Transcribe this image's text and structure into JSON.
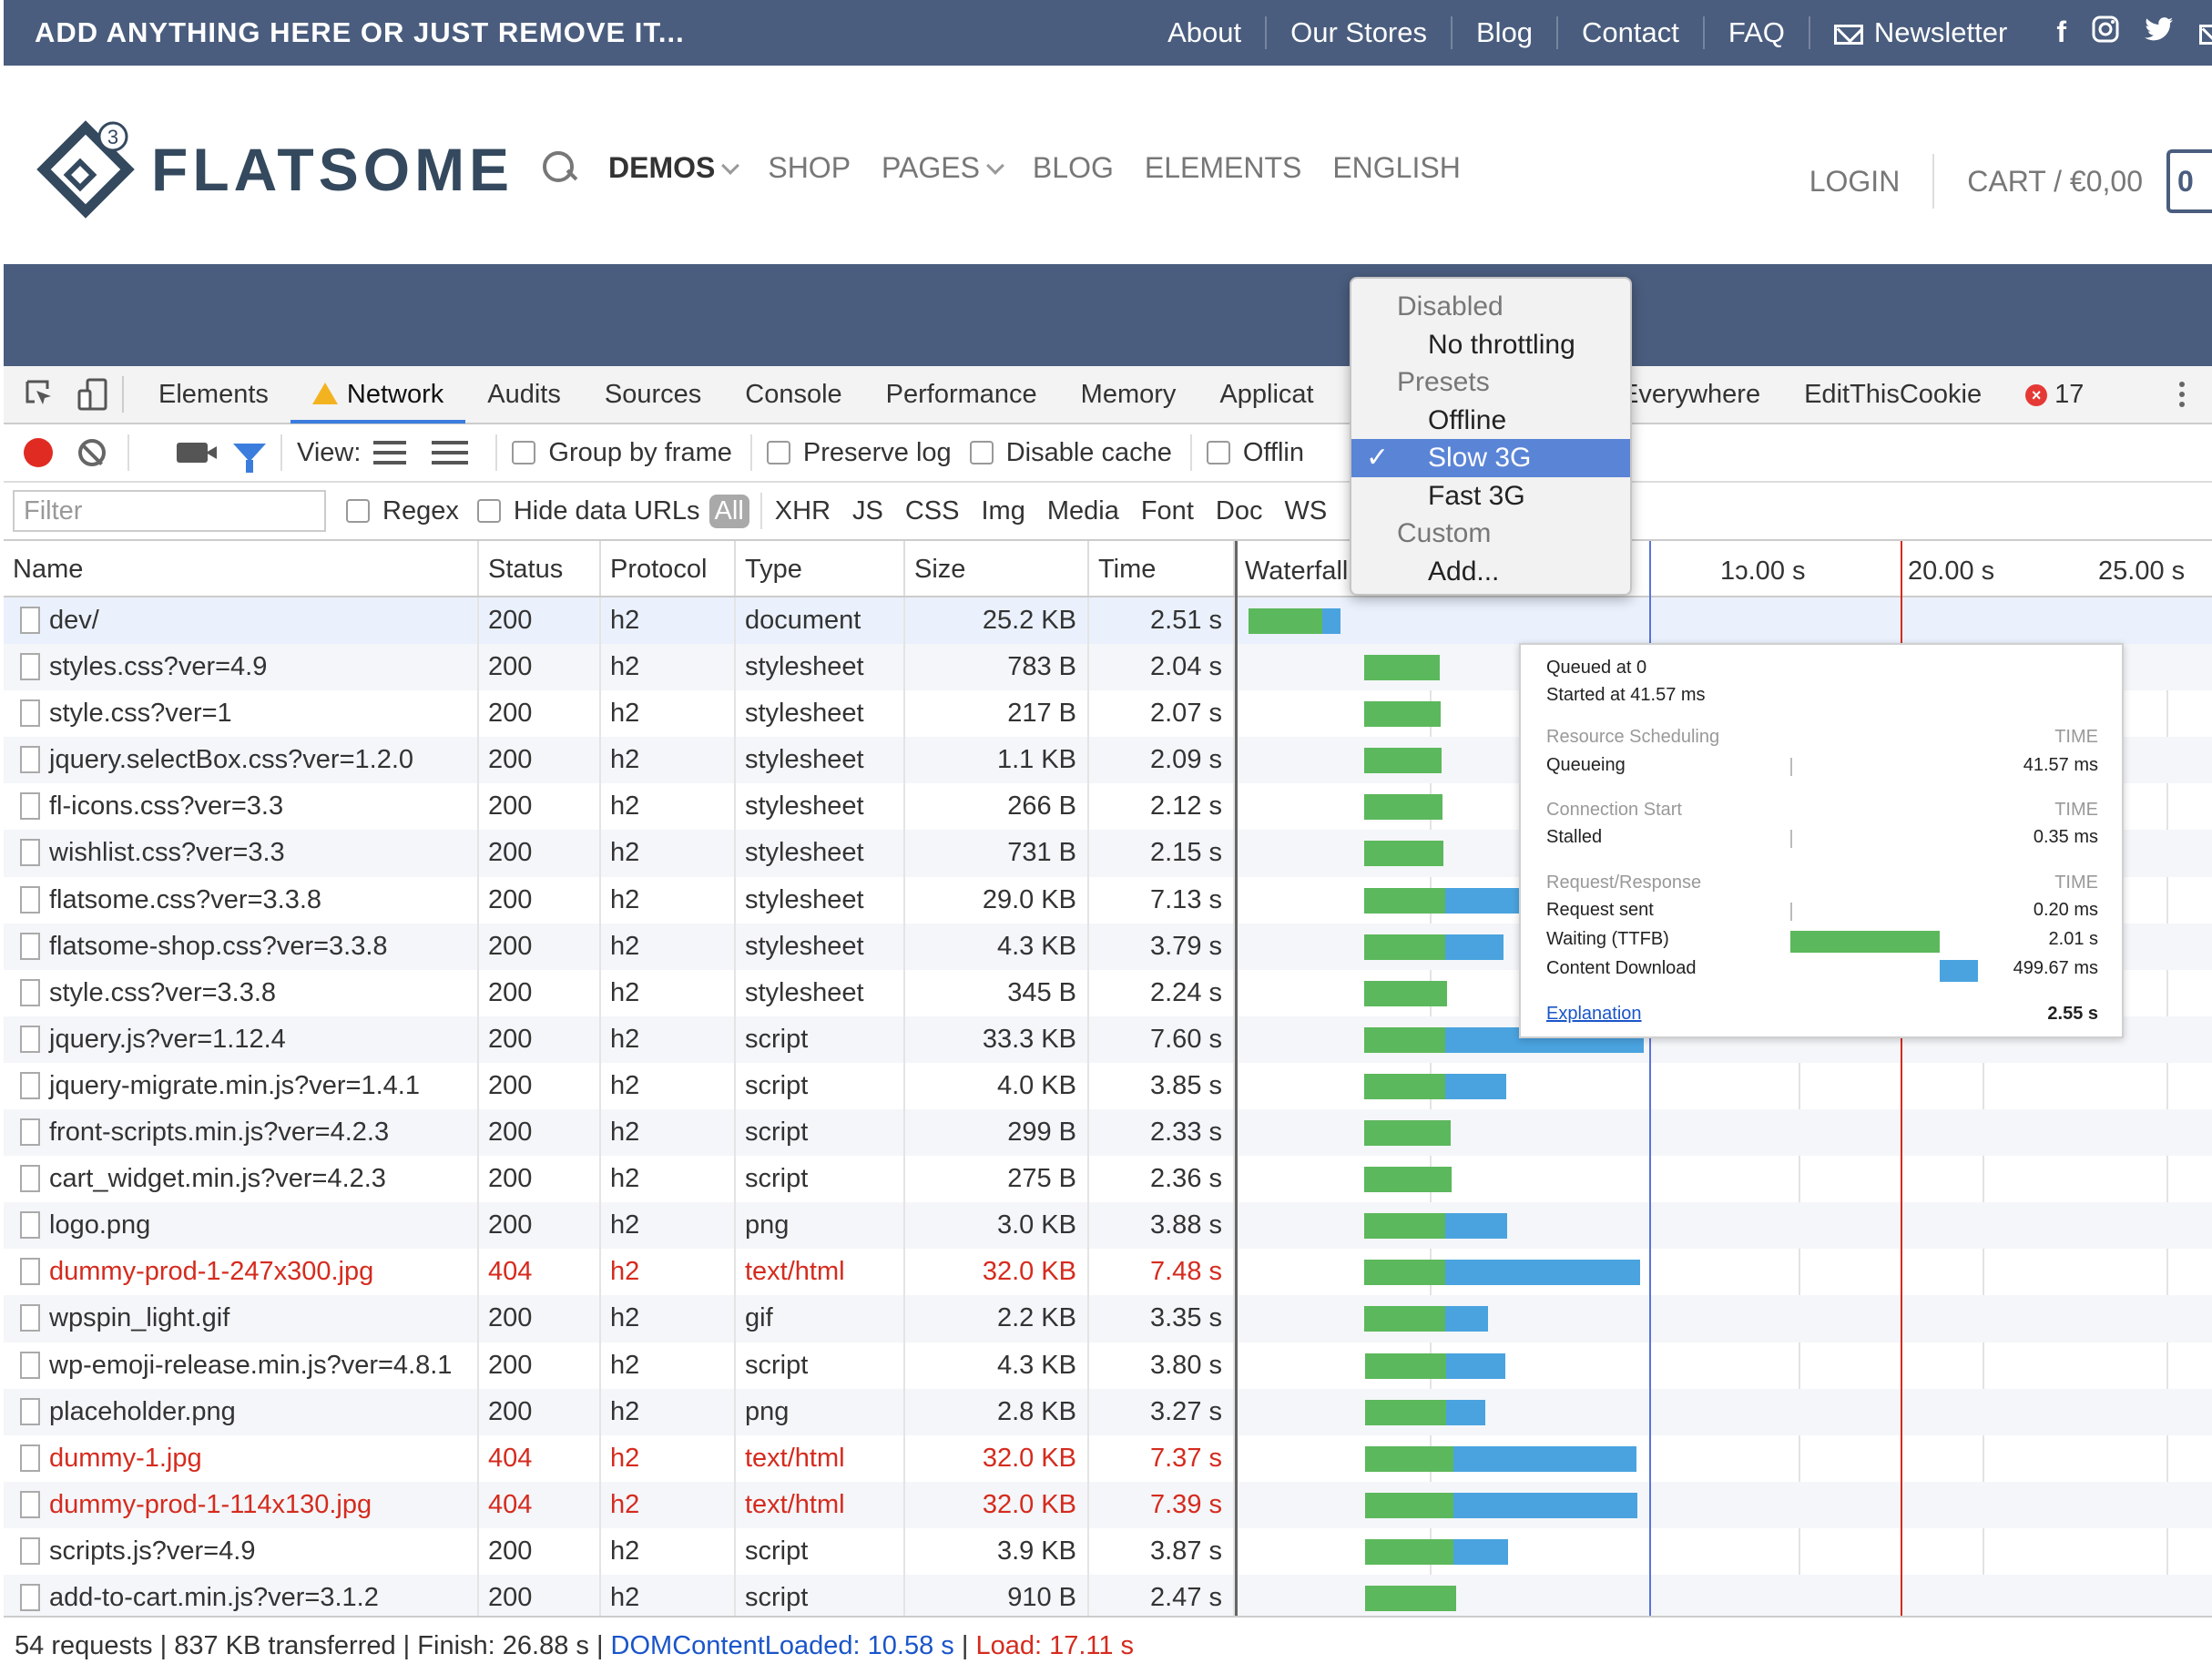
{
  "topbar": {
    "promo": "ADD ANYTHING HERE OR JUST REMOVE IT...",
    "links": [
      "About",
      "Our Stores",
      "Blog",
      "Contact",
      "FAQ",
      "Newsletter"
    ],
    "social_icons": [
      "facebook-icon",
      "instagram-icon",
      "twitter-icon",
      "mail-icon"
    ]
  },
  "header": {
    "logo_text": "FLATSOME",
    "logo_badge": "3",
    "nav": [
      "DEMOS",
      "SHOP",
      "PAGES",
      "BLOG",
      "ELEMENTS",
      "ENGLISH"
    ],
    "login": "LOGIN",
    "cart": "CART / €0,00",
    "cart_count": "0"
  },
  "devtools": {
    "tabs": [
      "Elements",
      "Network",
      "Audits",
      "Sources",
      "Console",
      "Performance",
      "Memory",
      "Applicat",
      "S Everywhere",
      "EditThisCookie"
    ],
    "selected_tab": "Network",
    "error_count": "17",
    "toolbar": {
      "view_label": "View:",
      "group_by_frame": "Group by frame",
      "preserve_log": "Preserve log",
      "disable_cache": "Disable cache",
      "offline": "Offlin"
    },
    "filter": {
      "placeholder": "Filter",
      "regex": "Regex",
      "hide_data_urls": "Hide data URLs",
      "types": [
        "All",
        "XHR",
        "JS",
        "CSS",
        "Img",
        "Media",
        "Font",
        "Doc",
        "WS"
      ]
    },
    "columns": [
      "Name",
      "Status",
      "Protocol",
      "Type",
      "Size",
      "Time",
      "Waterfall"
    ],
    "waterfall_ticks": [
      "1ͻ.00 s",
      "20.00 s",
      "25.00 s"
    ],
    "requests": [
      {
        "name": "dev/",
        "status": "200",
        "protocol": "h2",
        "type": "document",
        "size": "25.2 KB",
        "time": "2.51 s",
        "start": 0.0,
        "wait": 2.01,
        "download": 0.5
      },
      {
        "name": "styles.css?ver=4.9",
        "status": "200",
        "protocol": "h2",
        "type": "stylesheet",
        "size": "783 B",
        "time": "2.04 s",
        "start": 2.51,
        "wait": 2.04,
        "download": 0.0
      },
      {
        "name": "style.css?ver=1",
        "status": "200",
        "protocol": "h2",
        "type": "stylesheet",
        "size": "217 B",
        "time": "2.07 s",
        "start": 2.51,
        "wait": 2.07,
        "download": 0.0
      },
      {
        "name": "jquery.selectBox.css?ver=1.2.0",
        "status": "200",
        "protocol": "h2",
        "type": "stylesheet",
        "size": "1.1 KB",
        "time": "2.09 s",
        "start": 2.51,
        "wait": 2.09,
        "download": 0.0
      },
      {
        "name": "fl-icons.css?ver=3.3",
        "status": "200",
        "protocol": "h2",
        "type": "stylesheet",
        "size": "266 B",
        "time": "2.12 s",
        "start": 2.51,
        "wait": 2.12,
        "download": 0.0
      },
      {
        "name": "wishlist.css?ver=3.3",
        "status": "200",
        "protocol": "h2",
        "type": "stylesheet",
        "size": "731 B",
        "time": "2.15 s",
        "start": 2.51,
        "wait": 2.15,
        "download": 0.0
      },
      {
        "name": "flatsome.css?ver=3.3.8",
        "status": "200",
        "protocol": "h2",
        "type": "stylesheet",
        "size": "29.0 KB",
        "time": "7.13 s",
        "start": 2.51,
        "wait": 2.2,
        "download": 4.93
      },
      {
        "name": "flatsome-shop.css?ver=3.3.8",
        "status": "200",
        "protocol": "h2",
        "type": "stylesheet",
        "size": "4.3 KB",
        "time": "3.79 s",
        "start": 2.51,
        "wait": 2.2,
        "download": 1.59
      },
      {
        "name": "style.css?ver=3.3.8",
        "status": "200",
        "protocol": "h2",
        "type": "stylesheet",
        "size": "345 B",
        "time": "2.24 s",
        "start": 2.51,
        "wait": 2.24,
        "download": 0.0
      },
      {
        "name": "jquery.js?ver=1.12.4",
        "status": "200",
        "protocol": "h2",
        "type": "script",
        "size": "33.3 KB",
        "time": "7.60 s",
        "start": 2.51,
        "wait": 2.2,
        "download": 5.4
      },
      {
        "name": "jquery-migrate.min.js?ver=1.4.1",
        "status": "200",
        "protocol": "h2",
        "type": "script",
        "size": "4.0 KB",
        "time": "3.85 s",
        "start": 2.51,
        "wait": 2.2,
        "download": 1.65
      },
      {
        "name": "front-scripts.min.js?ver=4.2.3",
        "status": "200",
        "protocol": "h2",
        "type": "script",
        "size": "299 B",
        "time": "2.33 s",
        "start": 2.51,
        "wait": 2.33,
        "download": 0.0
      },
      {
        "name": "cart_widget.min.js?ver=4.2.3",
        "status": "200",
        "protocol": "h2",
        "type": "script",
        "size": "275 B",
        "time": "2.36 s",
        "start": 2.51,
        "wait": 2.36,
        "download": 0.0
      },
      {
        "name": "logo.png",
        "status": "200",
        "protocol": "h2",
        "type": "png",
        "size": "3.0 KB",
        "time": "3.88 s",
        "start": 2.51,
        "wait": 2.2,
        "download": 1.68
      },
      {
        "name": "dummy-prod-1-247x300.jpg",
        "status": "404",
        "protocol": "h2",
        "type": "text/html",
        "size": "32.0 KB",
        "time": "7.48 s",
        "start": 2.51,
        "wait": 2.2,
        "download": 5.28
      },
      {
        "name": "wpspin_light.gif",
        "status": "200",
        "protocol": "h2",
        "type": "gif",
        "size": "2.2 KB",
        "time": "3.35 s",
        "start": 2.51,
        "wait": 2.2,
        "download": 1.15
      },
      {
        "name": "wp-emoji-release.min.js?ver=4.8.1",
        "status": "200",
        "protocol": "h2",
        "type": "script",
        "size": "4.3 KB",
        "time": "3.80 s",
        "start": 2.6,
        "wait": 2.2,
        "download": 1.6
      },
      {
        "name": "placeholder.png",
        "status": "200",
        "protocol": "h2",
        "type": "png",
        "size": "2.8 KB",
        "time": "3.27 s",
        "start": 2.6,
        "wait": 2.2,
        "download": 1.07
      },
      {
        "name": "dummy-1.jpg",
        "status": "404",
        "protocol": "h2",
        "type": "text/html",
        "size": "32.0 KB",
        "time": "7.37 s",
        "start": 2.6,
        "wait": 2.4,
        "download": 4.97
      },
      {
        "name": "dummy-prod-1-114x130.jpg",
        "status": "404",
        "protocol": "h2",
        "type": "text/html",
        "size": "32.0 KB",
        "time": "7.39 s",
        "start": 2.6,
        "wait": 2.4,
        "download": 4.99
      },
      {
        "name": "scripts.js?ver=4.9",
        "status": "200",
        "protocol": "h2",
        "type": "script",
        "size": "3.9 KB",
        "time": "3.87 s",
        "start": 2.6,
        "wait": 2.4,
        "download": 1.47
      },
      {
        "name": "add-to-cart.min.js?ver=3.1.2",
        "status": "200",
        "protocol": "h2",
        "type": "script",
        "size": "910 B",
        "time": "2.47 s",
        "start": 2.6,
        "wait": 2.47,
        "download": 0.0
      }
    ],
    "status": {
      "requests": "54 requests",
      "transferred": "837 KB transferred",
      "finish": "Finish: 26.88 s",
      "dcl": "DOMContentLoaded: 10.58 s",
      "load": "Load: 17.11 s"
    },
    "throttle_menu": {
      "header_disabled": "Disabled",
      "no_throttling": "No throttling",
      "header_presets": "Presets",
      "offline": "Offline",
      "slow3g": "Slow 3G",
      "fast3g": "Fast 3G",
      "header_custom": "Custom",
      "add": "Add...",
      "selected": "Slow 3G"
    },
    "timing": {
      "queued": "Queued at 0",
      "started": "Started at 41.57 ms",
      "sched_header": "Resource Scheduling",
      "queueing": "Queueing",
      "queueing_val": "41.57 ms",
      "conn_header": "Connection Start",
      "stalled": "Stalled",
      "stalled_val": "0.35 ms",
      "req_header": "Request/Response",
      "request_sent": "Request sent",
      "request_sent_val": "0.20 ms",
      "waiting": "Waiting (TTFB)",
      "waiting_val": "2.01 s",
      "download": "Content Download",
      "download_val": "499.67 ms",
      "time_label": "TIME",
      "explanation": "Explanation",
      "total": "2.55 s"
    }
  }
}
